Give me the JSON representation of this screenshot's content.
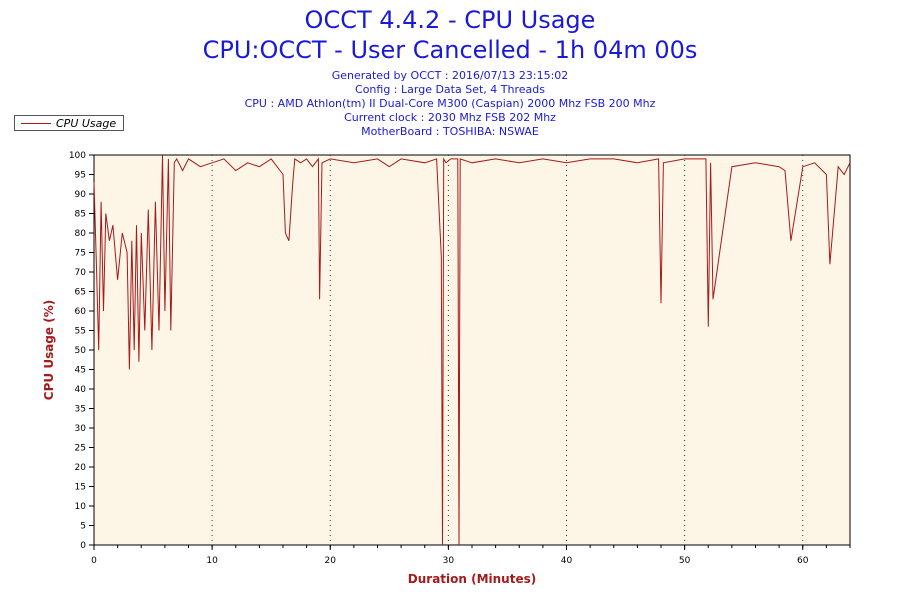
{
  "header": {
    "title": "OCCT 4.4.2 - CPU Usage",
    "subtitle": "CPU:OCCT - User Cancelled - 1h 04m 00s",
    "generated": "Generated by OCCT : 2016/07/13 23:15:02",
    "config": "Config : Large Data Set, 4 Threads",
    "cpu": "CPU : AMD Athlon(tm) II Dual-Core M300 (Caspian) 2000 Mhz FSB 200 Mhz",
    "clock": "Current clock : 2030 Mhz FSB 202 Mhz",
    "motherboard": "MotherBoard : TOSHIBA: NSWAE"
  },
  "legend": {
    "label": "CPU Usage"
  },
  "colors": {
    "series": "#a51a1a",
    "plot_bg": "#fdf5e6",
    "title": "#1a1ad6",
    "axis_title": "#a51a1a"
  },
  "chart_data": {
    "type": "line",
    "title": "OCCT 4.4.2 - CPU Usage",
    "xlabel": "Duration (Minutes)",
    "ylabel": "CPU Usage (%)",
    "xlim": [
      0,
      64
    ],
    "ylim": [
      0,
      100
    ],
    "x_ticks": [
      0,
      10,
      20,
      30,
      40,
      50,
      60
    ],
    "y_ticks": [
      0,
      5,
      10,
      15,
      20,
      25,
      30,
      35,
      40,
      45,
      50,
      55,
      60,
      65,
      70,
      75,
      80,
      85,
      90,
      95,
      100
    ],
    "grid": "vertical dotted at major x ticks",
    "legend_position": "top-left",
    "series": [
      {
        "name": "CPU Usage",
        "x": [
          0,
          0.2,
          0.4,
          0.6,
          0.8,
          1.0,
          1.3,
          1.6,
          2.0,
          2.4,
          2.8,
          3.0,
          3.2,
          3.4,
          3.6,
          3.8,
          4.0,
          4.3,
          4.6,
          4.9,
          5.2,
          5.5,
          5.8,
          6.0,
          6.3,
          6.5,
          6.8,
          7.0,
          7.5,
          8.0,
          9.0,
          10.0,
          11.0,
          12.0,
          13.0,
          14.0,
          15.0,
          16.0,
          16.2,
          16.5,
          16.8,
          17.0,
          17.5,
          18.0,
          18.5,
          19.0,
          19.1,
          19.3,
          20.0,
          22.0,
          24.0,
          25.0,
          26.0,
          28.0,
          29.0,
          29.4,
          29.5,
          29.6,
          29.8,
          30.2,
          30.8,
          30.9,
          31.0,
          32.0,
          34.0,
          36.0,
          38.0,
          40.0,
          42.0,
          44.0,
          46.0,
          47.8,
          48.0,
          48.2,
          50.0,
          51.8,
          52.0,
          52.2,
          52.4,
          54.0,
          56.0,
          58.0,
          58.5,
          59.0,
          60.0,
          61.0,
          62.0,
          62.3,
          63.0,
          63.5,
          64.0
        ],
        "values": [
          93,
          72,
          50,
          88,
          60,
          85,
          78,
          82,
          68,
          80,
          75,
          45,
          78,
          50,
          82,
          47,
          80,
          55,
          86,
          50,
          88,
          55,
          100,
          60,
          99,
          55,
          98,
          99,
          96,
          99,
          97,
          98,
          99,
          96,
          98,
          97,
          99,
          95,
          80,
          78,
          92,
          99,
          98,
          99,
          97,
          99,
          63,
          98,
          99,
          98,
          99,
          97,
          99,
          98,
          99,
          74,
          0,
          99,
          98,
          99,
          99,
          0,
          99,
          98,
          99,
          98,
          99,
          98,
          99,
          99,
          98,
          99,
          62,
          98,
          99,
          99,
          56,
          98,
          63,
          97,
          98,
          97,
          96,
          78,
          97,
          98,
          95,
          72,
          97,
          95,
          98
        ]
      }
    ]
  }
}
